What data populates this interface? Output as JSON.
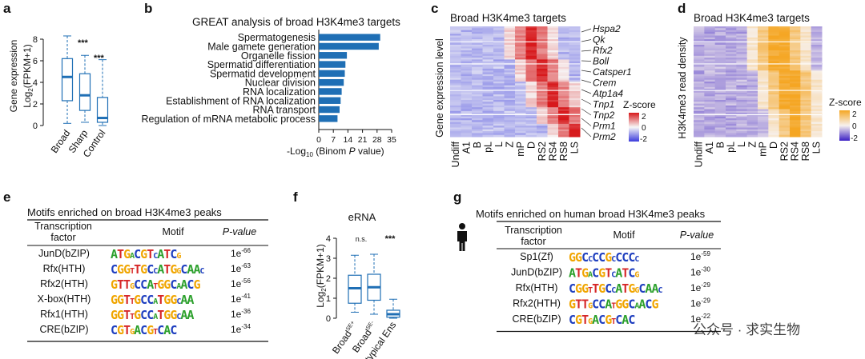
{
  "panels": {
    "a": {
      "label": "a",
      "chart_data": {
        "type": "box",
        "ylabel": [
          "Gene expression",
          "Log",
          "2",
          "(FPKM+1)"
        ],
        "ylim": [
          0,
          8
        ],
        "yticks": [
          "0",
          "2",
          "4",
          "6",
          "8"
        ],
        "categories": [
          "Broad",
          "Sharp",
          "Control"
        ],
        "boxes": [
          {
            "min": 0.2,
            "q1": 2.3,
            "median": 4.5,
            "q3": 6.2,
            "max": 8.3
          },
          {
            "min": 0.3,
            "q1": 1.4,
            "median": 2.8,
            "q3": 4.8,
            "max": 6.5
          },
          {
            "min": 0.0,
            "q1": 0.3,
            "median": 0.7,
            "q3": 2.6,
            "max": 6.1
          }
        ],
        "annotations": [
          "***",
          "***"
        ]
      }
    },
    "b": {
      "label": "b",
      "chart_data": {
        "type": "bar",
        "orientation": "horizontal",
        "title": "GREAT analysis of broad H3K4me3 targets",
        "categories": [
          "Spermatogenesis",
          "Male gamete generation",
          "Organelle fission",
          "Spermatid differentiation",
          "Spermatid development",
          "Nuclear division",
          "RNA localization",
          "Establishment of RNA localization",
          "RNA transport",
          "Regulation of mRNA metabolic process"
        ],
        "values": [
          29.5,
          28.8,
          13.5,
          12.8,
          12.5,
          12.0,
          11.0,
          10.5,
          10.0,
          9.0
        ],
        "xticks": [
          "0",
          "7",
          "14",
          "21",
          "28",
          "35"
        ],
        "xlim": [
          0,
          35
        ],
        "xlabel_parts": [
          "-Log",
          "10",
          " (Binom ",
          "P",
          " value)"
        ],
        "color": "#1f6fb5"
      }
    },
    "c": {
      "label": "c",
      "chart_data": {
        "type": "heatmap",
        "title": "Broad H3K4me3 targets",
        "ylabel": "Gene expression level",
        "columns": [
          "Undiff",
          "A1",
          "B",
          "pL",
          "L",
          "Z",
          "mP",
          "D",
          "RS2",
          "RS4",
          "RS8",
          "LS"
        ],
        "genes": [
          "Hspa2",
          "Qk",
          "Rfx2",
          "Boll",
          "Catsper1",
          "Crem",
          "Atp1a4",
          "Tnp1",
          "Tnp2",
          "Prm1",
          "Prm2"
        ],
        "legend_title": "Z-score",
        "legend_ticks": [
          "2",
          "0",
          "-2"
        ],
        "colors": {
          "high": "#d7191c",
          "mid": "#f7f7f7",
          "low": "#3b3bdc"
        }
      }
    },
    "d": {
      "label": "d",
      "chart_data": {
        "type": "heatmap",
        "title": "Broad H3K4me3 targets",
        "ylabel": "H3K4me3 read density",
        "columns": [
          "Undiff",
          "A1",
          "B",
          "pL",
          "L",
          "Z",
          "mP",
          "D",
          "RS2",
          "RS4",
          "RS8",
          "LS"
        ],
        "legend_title": "Z-score",
        "legend_ticks": [
          "2",
          "0",
          "-2"
        ],
        "colors": {
          "high": "#f5a623",
          "mid": "#f7f1ee",
          "low": "#3b1fc4"
        }
      }
    },
    "e": {
      "label": "e",
      "chart_data": {
        "type": "table",
        "title": "Motifs enriched on broad H3K4me3 peaks",
        "headers": [
          "Transcription factor",
          "Motif",
          "P-value"
        ],
        "rows": [
          {
            "tf": "JunD(bZIP)",
            "motif": "ATGACGTCATCG",
            "p": "1e",
            "exp": "-66"
          },
          {
            "tf": "Rfx(HTH)",
            "motif": "CGGTTGCCATGGCAAC",
            "p": "1e",
            "exp": "-63"
          },
          {
            "tf": "Rfx2(HTH)",
            "motif": "GTTGCCATGGCAACG",
            "p": "1e",
            "exp": "-56"
          },
          {
            "tf": "X-box(HTH)",
            "motif": "GGTTGCCATGGCAA",
            "p": "1e",
            "exp": "-41"
          },
          {
            "tf": "Rfx1(HTH)",
            "motif": "GGTTGCCATGGCAA",
            "p": "1e",
            "exp": "-36"
          },
          {
            "tf": "CRE(bZIP)",
            "motif": "CGTGACGTCAC",
            "p": "1e",
            "exp": "-34"
          }
        ]
      }
    },
    "f": {
      "label": "f",
      "chart_data": {
        "type": "box",
        "title": "eRNA",
        "ylabel": [
          "Log",
          "2",
          "(FPKM+1)"
        ],
        "ylim": [
          0,
          4
        ],
        "yticks": [
          "0",
          "1",
          "2",
          "3",
          "4"
        ],
        "categories": [
          {
            "base": "Broad",
            "sup": "SE+"
          },
          {
            "base": "Broad",
            "sup": "SE-"
          },
          {
            "base": "typical Ens",
            "sup": ""
          }
        ],
        "boxes": [
          {
            "min": 0.3,
            "q1": 0.75,
            "median": 1.5,
            "q3": 2.15,
            "max": 3.15
          },
          {
            "min": 0.2,
            "q1": 0.9,
            "median": 1.55,
            "q3": 2.2,
            "max": 3.2
          },
          {
            "min": 0.0,
            "q1": 0.05,
            "median": 0.2,
            "q3": 0.4,
            "max": 0.95
          }
        ],
        "annotations": [
          "n.s.",
          "***"
        ]
      }
    },
    "g": {
      "label": "g",
      "chart_data": {
        "type": "table",
        "title": "Motifs enriched on human broad H3K4me3 peaks",
        "headers": [
          "Transcription factor",
          "Motif",
          "P-value"
        ],
        "rows": [
          {
            "tf": "Sp1(Zf)",
            "motif": "GGCCCCGCCCCC",
            "p": "1e",
            "exp": "-59"
          },
          {
            "tf": "JunD(bZIP)",
            "motif": "ATGACGTCATCG",
            "p": "1e",
            "exp": "-30"
          },
          {
            "tf": "Rfx(HTH)",
            "motif": "CGGTTGCCATGGCAAC",
            "p": "1e",
            "exp": "-29"
          },
          {
            "tf": "Rfx2(HTH)",
            "motif": "GTTGCCATGGCAACG",
            "p": "1e",
            "exp": "-29"
          },
          {
            "tf": "CRE(bZIP)",
            "motif": "CGTGACGTCAC",
            "p": "1e",
            "exp": "-22"
          }
        ]
      }
    }
  },
  "watermark": "公众号 · 求实生物",
  "motif_colors": {
    "A": "#2ca02c",
    "C": "#1f3fbf",
    "G": "#f0a500",
    "T": "#d62728"
  }
}
